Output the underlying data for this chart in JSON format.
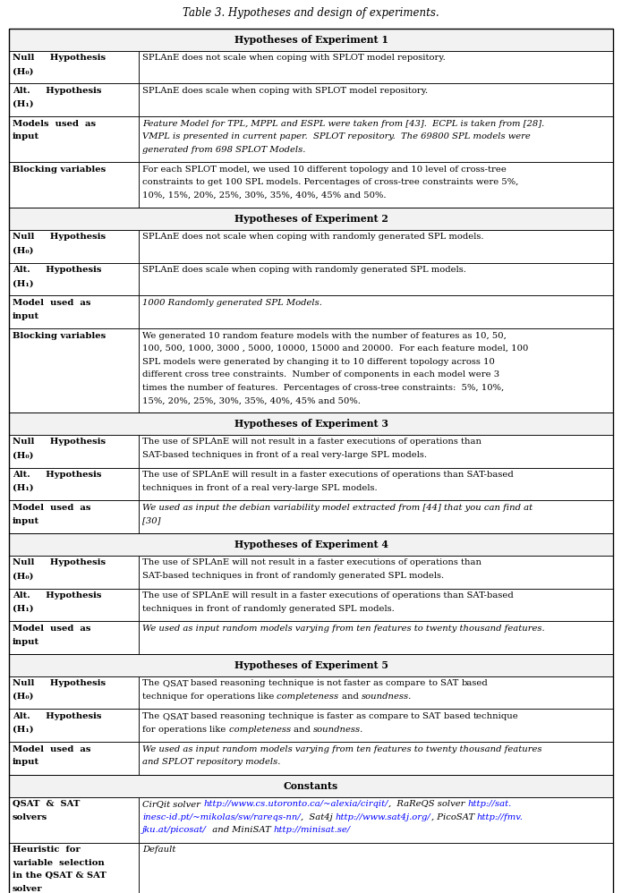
{
  "title": "Table 3. Hypotheses and design of experiments.",
  "sections": [
    {
      "type": "header",
      "text": "Hypotheses of Experiment 1"
    },
    {
      "type": "row",
      "col1_lines": [
        "Null     Hypothesis",
        "(H₀)"
      ],
      "col2_lines": [
        "SPLAnE does not scale when coping with SPLOT model repository.",
        ""
      ],
      "col1_bold": true,
      "col2_italic": false
    },
    {
      "type": "row",
      "col1_lines": [
        "Alt.     Hypothesis",
        "(H₁)"
      ],
      "col2_lines": [
        "SPLAnE does scale when coping with SPLOT model repository.",
        ""
      ],
      "col1_bold": true,
      "col2_italic": false
    },
    {
      "type": "row",
      "col1_lines": [
        "Models  used  as",
        "input"
      ],
      "col2_lines": [
        "Feature Model for TPL, MPPL and ESPL were taken from [43].  ECPL is taken from [28].",
        "VMPL is presented in current paper.  SPLOT repository.  The 69800 SPL models were",
        "generated from 698 SPLOT Models."
      ],
      "col1_bold": true,
      "col2_italic": true
    },
    {
      "type": "row",
      "col1_lines": [
        "Blocking variables"
      ],
      "col2_lines": [
        "For each SPLOT model, we used 10 different topology and 10 level of cross-tree",
        "constraints to get 100 SPL models. Percentages of cross-tree constraints were 5%,",
        "10%, 15%, 20%, 25%, 30%, 35%, 40%, 45% and 50%."
      ],
      "col1_bold": true,
      "col2_italic": false
    },
    {
      "type": "header",
      "text": "Hypotheses of Experiment 2"
    },
    {
      "type": "row",
      "col1_lines": [
        "Null     Hypothesis",
        "(H₀)"
      ],
      "col2_lines": [
        "SPLAnE does not scale when coping with randomly generated SPL models.",
        ""
      ],
      "col1_bold": true,
      "col2_italic": false
    },
    {
      "type": "row",
      "col1_lines": [
        "Alt.     Hypothesis",
        "(H₁)"
      ],
      "col2_lines": [
        "SPLAnE does scale when coping with randomly generated SPL models.",
        ""
      ],
      "col1_bold": true,
      "col2_italic": false
    },
    {
      "type": "row",
      "col1_lines": [
        "Model  used  as",
        "input"
      ],
      "col2_lines": [
        "1000 Randomly generated SPL Models.",
        ""
      ],
      "col1_bold": true,
      "col2_italic": true
    },
    {
      "type": "row",
      "col1_lines": [
        "Blocking variables"
      ],
      "col2_lines": [
        "We generated 10 random feature models with the number of features as 10, 50,",
        "100, 500, 1000, 3000 , 5000, 10000, 15000 and 20000.  For each feature model, 100",
        "SPL models were generated by changing it to 10 different topology across 10",
        "different cross tree constraints.  Number of components in each model were 3",
        "times the number of features.  Percentages of cross-tree constraints:  5%, 10%,",
        "15%, 20%, 25%, 30%, 35%, 40%, 45% and 50%."
      ],
      "col1_bold": true,
      "col2_italic": false
    },
    {
      "type": "header",
      "text": "Hypotheses of Experiment 3"
    },
    {
      "type": "row",
      "col1_lines": [
        "Null     Hypothesis",
        "(H₀)"
      ],
      "col2_lines": [
        "The use of SPLAnE will not result in a faster executions of operations than",
        "SAT-based techniques in front of a real very-large SPL models."
      ],
      "col1_bold": true,
      "col2_italic": false
    },
    {
      "type": "row",
      "col1_lines": [
        "Alt.     Hypothesis",
        "(H₁)"
      ],
      "col2_lines": [
        "The use of SPLAnE will result in a faster executions of operations than SAT-based",
        "techniques in front of a real very-large SPL models."
      ],
      "col1_bold": true,
      "col2_italic": false
    },
    {
      "type": "row",
      "col1_lines": [
        "Model  used  as",
        "input"
      ],
      "col2_lines": [
        "We used as input the debian variability model extracted from [44] that you can find at",
        "[30]"
      ],
      "col1_bold": true,
      "col2_italic": true
    },
    {
      "type": "header",
      "text": "Hypotheses of Experiment 4"
    },
    {
      "type": "row",
      "col1_lines": [
        "Null     Hypothesis",
        "(H₀)"
      ],
      "col2_lines": [
        "The use of SPLAnE will not result in a faster executions of operations than",
        "SAT-based techniques in front of randomly generated SPL models."
      ],
      "col1_bold": true,
      "col2_italic": false
    },
    {
      "type": "row",
      "col1_lines": [
        "Alt.     Hypothesis",
        "(H₁)"
      ],
      "col2_lines": [
        "The use of SPLAnE will result in a faster executions of operations than SAT-based",
        "techniques in front of randomly generated SPL models."
      ],
      "col1_bold": true,
      "col2_italic": false
    },
    {
      "type": "row",
      "col1_lines": [
        "Model  used  as",
        "input"
      ],
      "col2_lines": [
        "We used as input random models varying from ten features to twenty thousand features."
      ],
      "col1_bold": true,
      "col2_italic": true
    },
    {
      "type": "header",
      "text": "Hypotheses of Experiment 5"
    },
    {
      "type": "row",
      "col1_lines": [
        "Null     Hypothesis",
        "(H₀)"
      ],
      "col2_lines": [
        "The QSAT based reasoning technique is not faster as compare to SAT based",
        "technique for operations like completeness and soundness."
      ],
      "col1_bold": true,
      "col2_italic": false,
      "col2_italic_words": [
        "completeness",
        "soundness."
      ]
    },
    {
      "type": "row",
      "col1_lines": [
        "Alt.     Hypothesis",
        "(H₁)"
      ],
      "col2_lines": [
        "The QSAT based reasoning technique is faster as compare to SAT based technique",
        "for operations like completeness and soundness."
      ],
      "col1_bold": true,
      "col2_italic": false,
      "col2_italic_words": [
        "completeness",
        "soundness."
      ]
    },
    {
      "type": "row",
      "col1_lines": [
        "Model  used  as",
        "input"
      ],
      "col2_lines": [
        "We used as input random models varying from ten features to twenty thousand features",
        "and SPLOT repository models."
      ],
      "col1_bold": true,
      "col2_italic": true
    },
    {
      "type": "header",
      "text": "Constants"
    },
    {
      "type": "row",
      "col1_lines": [
        "QSAT  &  SAT",
        "solvers"
      ],
      "col2_segments": [
        [
          {
            "text": "CirQit solver ",
            "italic": true,
            "color": "black"
          },
          {
            "text": "http://www.cs.utoronto.ca/~alexia/cirqit/",
            "italic": true,
            "color": "blue"
          },
          {
            "text": ",  RaReQS solver ",
            "italic": true,
            "color": "black"
          },
          {
            "text": "http://sat.",
            "italic": true,
            "color": "blue"
          }
        ],
        [
          {
            "text": "inesc-id.pt/~mikolas/sw/rareqs-nn/",
            "italic": true,
            "color": "blue"
          },
          {
            "text": ",  Sat4j ",
            "italic": true,
            "color": "black"
          },
          {
            "text": "http://www.sat4j.org/",
            "italic": true,
            "color": "blue"
          },
          {
            "text": ", PicoSAT ",
            "italic": true,
            "color": "black"
          },
          {
            "text": "http://fmv.",
            "italic": true,
            "color": "blue"
          }
        ],
        [
          {
            "text": "jku.at/picosat/",
            "italic": true,
            "color": "blue"
          },
          {
            "text": "  and MiniSAT ",
            "italic": true,
            "color": "black"
          },
          {
            "text": "http://minisat.se/",
            "italic": true,
            "color": "blue"
          }
        ]
      ],
      "col1_bold": true
    },
    {
      "type": "row",
      "col1_lines": [
        "Heuristic  for",
        "variable  selection",
        "in the QSAT & SAT",
        "solver"
      ],
      "col2_lines": [
        "Default"
      ],
      "col1_bold": true,
      "col2_italic": true
    }
  ]
}
